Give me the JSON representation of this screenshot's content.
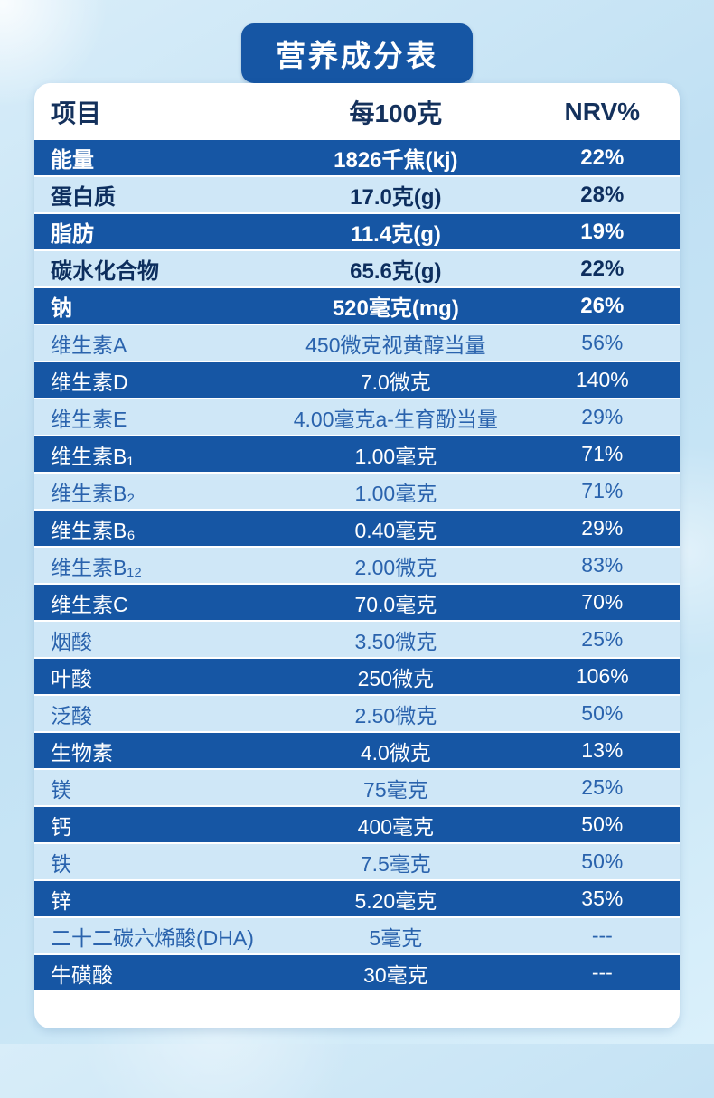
{
  "title": "营养成分表",
  "table": {
    "headers": {
      "item": "项目",
      "per100g": "每100克",
      "nrv": "NRV%"
    },
    "rows": [
      {
        "name": "能量",
        "amount": "1826千焦(kj)",
        "nrv": "22%",
        "variant": "dark",
        "bold": true
      },
      {
        "name": "蛋白质",
        "amount": "17.0克(g)",
        "nrv": "28%",
        "variant": "light",
        "bold": true
      },
      {
        "name": "脂肪",
        "amount": "11.4克(g)",
        "nrv": "19%",
        "variant": "dark",
        "bold": true
      },
      {
        "name": "碳水化合物",
        "amount": "65.6克(g)",
        "nrv": "22%",
        "variant": "light",
        "bold": true
      },
      {
        "name": "钠",
        "amount": "520毫克(mg)",
        "nrv": "26%",
        "variant": "dark",
        "bold": true
      },
      {
        "name": "维生素A",
        "amount": "450微克视黄醇当量",
        "nrv": "56%",
        "variant": "light",
        "bold": false
      },
      {
        "name": "维生素D",
        "amount": "7.0微克",
        "nrv": "140%",
        "variant": "dark",
        "bold": false
      },
      {
        "name": "维生素E",
        "amount": "4.00毫克a-生育酚当量",
        "nrv": "29%",
        "variant": "light",
        "bold": false
      },
      {
        "name": "维生素B₁",
        "amount": "1.00毫克",
        "nrv": "71%",
        "variant": "dark",
        "bold": false
      },
      {
        "name": "维生素B₂",
        "amount": "1.00毫克",
        "nrv": "71%",
        "variant": "light",
        "bold": false
      },
      {
        "name": "维生素B₆",
        "amount": "0.40毫克",
        "nrv": "29%",
        "variant": "dark",
        "bold": false
      },
      {
        "name": "维生素B₁₂",
        "amount": "2.00微克",
        "nrv": "83%",
        "variant": "light",
        "bold": false
      },
      {
        "name": "维生素C",
        "amount": "70.0毫克",
        "nrv": "70%",
        "variant": "dark",
        "bold": false
      },
      {
        "name": "烟酸",
        "amount": "3.50微克",
        "nrv": "25%",
        "variant": "light",
        "bold": false
      },
      {
        "name": "叶酸",
        "amount": "250微克",
        "nrv": "106%",
        "variant": "dark",
        "bold": false
      },
      {
        "name": "泛酸",
        "amount": "2.50微克",
        "nrv": "50%",
        "variant": "light",
        "bold": false
      },
      {
        "name": "生物素",
        "amount": "4.0微克",
        "nrv": "13%",
        "variant": "dark",
        "bold": false
      },
      {
        "name": "镁",
        "amount": "75毫克",
        "nrv": "25%",
        "variant": "light",
        "bold": false
      },
      {
        "name": "钙",
        "amount": "400毫克",
        "nrv": "50%",
        "variant": "dark",
        "bold": false
      },
      {
        "name": "铁",
        "amount": "7.5毫克",
        "nrv": "50%",
        "variant": "light",
        "bold": false
      },
      {
        "name": "锌",
        "amount": "5.20毫克",
        "nrv": "35%",
        "variant": "dark",
        "bold": false
      },
      {
        "name": "二十二碳六烯酸(DHA)",
        "amount": "5毫克",
        "nrv": "---",
        "variant": "light",
        "bold": false
      },
      {
        "name": "牛磺酸",
        "amount": "30毫克",
        "nrv": "---",
        "variant": "dark",
        "bold": false
      }
    ]
  },
  "colors": {
    "title_bg": "#1656a4",
    "dark_row_bg": "#1656a4",
    "light_row_bg": "#cfe7f7",
    "panel_bg": "#ffffff",
    "page_bg": "#c4e2f4"
  }
}
